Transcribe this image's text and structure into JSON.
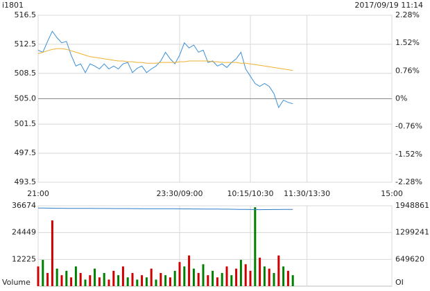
{
  "chart_data": [
    {
      "type": "line",
      "title": "i1801",
      "subtitle": "2017/09/19 11:14",
      "x": [
        0,
        5,
        10,
        15,
        20,
        25,
        30,
        35,
        40,
        45,
        50,
        55,
        60,
        65,
        70,
        75,
        80,
        85,
        90,
        95,
        100,
        105,
        110,
        115,
        120,
        125,
        130,
        135,
        140,
        145,
        150,
        155,
        160,
        165,
        170,
        175,
        180,
        185,
        190,
        195,
        200,
        205,
        210,
        215,
        220,
        225,
        230,
        235,
        240,
        245,
        250,
        255,
        260,
        265,
        270
      ],
      "xlim": [
        0,
        375
      ],
      "xticks": [
        {
          "value": 0,
          "label": "21:00"
        },
        {
          "value": 150,
          "label": "23:30/09:00"
        },
        {
          "value": 225,
          "label": "10:15/10:30"
        },
        {
          "value": 285,
          "label": "11:30/13:30"
        },
        {
          "value": 375,
          "label": "15:00"
        }
      ],
      "ylim": [
        493.5,
        516.5
      ],
      "yticks": [
        516.5,
        512.5,
        508.5,
        {
          "value": 505,
          "label": "505.0"
        },
        501.5,
        497.5,
        493.5
      ],
      "y2lim": [
        -2.28,
        2.28
      ],
      "y2ticks": [
        {
          "value": 2.28,
          "label": "2.28%"
        },
        {
          "value": 1.52,
          "label": "1.52%"
        },
        {
          "value": 0.76,
          "label": "0.76%"
        },
        {
          "value": 0,
          "label": "0%"
        },
        {
          "value": -0.76,
          "label": "-0.76%"
        },
        {
          "value": -1.52,
          "label": "-1.52%"
        },
        {
          "value": -2.28,
          "label": "-2.28%"
        }
      ],
      "up_color": "#d00000",
      "down_color": "#008000",
      "grid": true,
      "series": [
        {
          "color": "#3a8fd8",
          "values": [
            511.7,
            511.4,
            512.9,
            514.3,
            513.4,
            512.7,
            512.9,
            511.0,
            509.5,
            509.8,
            508.6,
            509.8,
            509.5,
            509.1,
            509.8,
            509.1,
            509.5,
            509.1,
            509.8,
            510.0,
            508.6,
            509.2,
            509.5,
            508.6,
            509.1,
            509.5,
            510.2,
            511.4,
            510.5,
            509.8,
            511.0,
            512.7,
            512.0,
            512.4,
            511.4,
            511.7,
            510.0,
            510.2,
            509.5,
            509.8,
            509.3,
            510.0,
            510.5,
            511.4,
            509.1,
            508.1,
            507.1,
            506.7,
            507.1,
            506.7,
            505.7,
            503.8,
            504.8,
            504.5,
            504.3
          ]
        },
        {
          "color": "#f0b030",
          "values": [
            511.2,
            511.4,
            511.6,
            511.8,
            511.9,
            511.9,
            511.8,
            511.6,
            511.4,
            511.2,
            511.0,
            510.8,
            510.7,
            510.6,
            510.5,
            510.4,
            510.3,
            510.2,
            510.2,
            510.1,
            510.1,
            510.0,
            510.0,
            509.9,
            509.9,
            509.9,
            510.0,
            510.0,
            510.0,
            510.0,
            510.1,
            510.1,
            510.2,
            510.2,
            510.2,
            510.2,
            510.2,
            510.1,
            510.1,
            510.0,
            510.0,
            510.0,
            510.0,
            509.9,
            509.9,
            509.8,
            509.7,
            509.6,
            509.5,
            509.4,
            509.3,
            509.2,
            509.1,
            509.0,
            508.9
          ]
        }
      ]
    },
    {
      "type": "bar",
      "y_label": "Volume",
      "y2_label": "OI",
      "x": [
        0,
        5,
        10,
        15,
        20,
        25,
        30,
        35,
        40,
        45,
        50,
        55,
        60,
        65,
        70,
        75,
        80,
        85,
        90,
        95,
        100,
        105,
        110,
        115,
        120,
        125,
        130,
        135,
        140,
        145,
        150,
        155,
        160,
        165,
        170,
        175,
        180,
        185,
        190,
        195,
        200,
        205,
        210,
        215,
        220,
        225,
        230,
        235,
        240,
        245,
        250,
        255,
        260,
        265,
        270
      ],
      "xlim": [
        0,
        375
      ],
      "xticks": [
        0,
        150,
        225,
        285,
        375
      ],
      "ylim": [
        0,
        36674
      ],
      "yticks": [
        12225,
        24449,
        36674
      ],
      "y2lim": [
        0,
        1948861
      ],
      "y2ticks": [
        649620,
        1299241,
        1948861
      ],
      "grid": true,
      "values": [
        9000,
        12000,
        6000,
        30000,
        8000,
        5000,
        7000,
        4000,
        9000,
        6000,
        3000,
        5000,
        8000,
        4000,
        6000,
        3000,
        7000,
        5000,
        9000,
        4000,
        6000,
        3000,
        5000,
        4000,
        8000,
        3000,
        6000,
        5000,
        4000,
        7000,
        11000,
        9000,
        14000,
        8000,
        6000,
        10000,
        5000,
        7000,
        4000,
        6000,
        9000,
        5000,
        8000,
        12000,
        10000,
        7000,
        36000,
        13000,
        9000,
        8000,
        6000,
        14000,
        9000,
        7000,
        5000
      ],
      "bar_colors": [
        "#d00000",
        "#008000",
        "#d00000",
        "#d00000",
        "#008000",
        "#d00000",
        "#008000",
        "#d00000",
        "#008000",
        "#d00000",
        "#008000",
        "#d00000",
        "#008000",
        "#d00000",
        "#008000",
        "#d00000",
        "#d00000",
        "#008000",
        "#d00000",
        "#008000",
        "#d00000",
        "#008000",
        "#d00000",
        "#008000",
        "#d00000",
        "#008000",
        "#d00000",
        "#008000",
        "#d00000",
        "#008000",
        "#d00000",
        "#008000",
        "#d00000",
        "#008000",
        "#d00000",
        "#008000",
        "#d00000",
        "#008000",
        "#d00000",
        "#008000",
        "#d00000",
        "#008000",
        "#d00000",
        "#008000",
        "#d00000",
        "#d00000",
        "#008000",
        "#d00000",
        "#008000",
        "#d00000",
        "#008000",
        "#d00000",
        "#008000",
        "#d00000",
        "#008000"
      ],
      "series": [
        {
          "axis": "y2",
          "color": "#2a7bc8",
          "values": [
            1895000,
            1893000,
            1892000,
            1890000,
            1889000,
            1888000,
            1887000,
            1887000,
            1886000,
            1886000,
            1885000,
            1885000,
            1884000,
            1884000,
            1883000,
            1883000,
            1882000,
            1882000,
            1881000,
            1881000,
            1880000,
            1880000,
            1879000,
            1879000,
            1878000,
            1878000,
            1877000,
            1877000,
            1876000,
            1876000,
            1875000,
            1874000,
            1873000,
            1872000,
            1871000,
            1870000,
            1870000,
            1869000,
            1868000,
            1867000,
            1866000,
            1865000,
            1864000,
            1862000,
            1860000,
            1858000,
            1856000,
            1855000,
            1856000,
            1857000,
            1858000,
            1858000,
            1859000,
            1859000,
            1860000
          ]
        }
      ]
    }
  ]
}
